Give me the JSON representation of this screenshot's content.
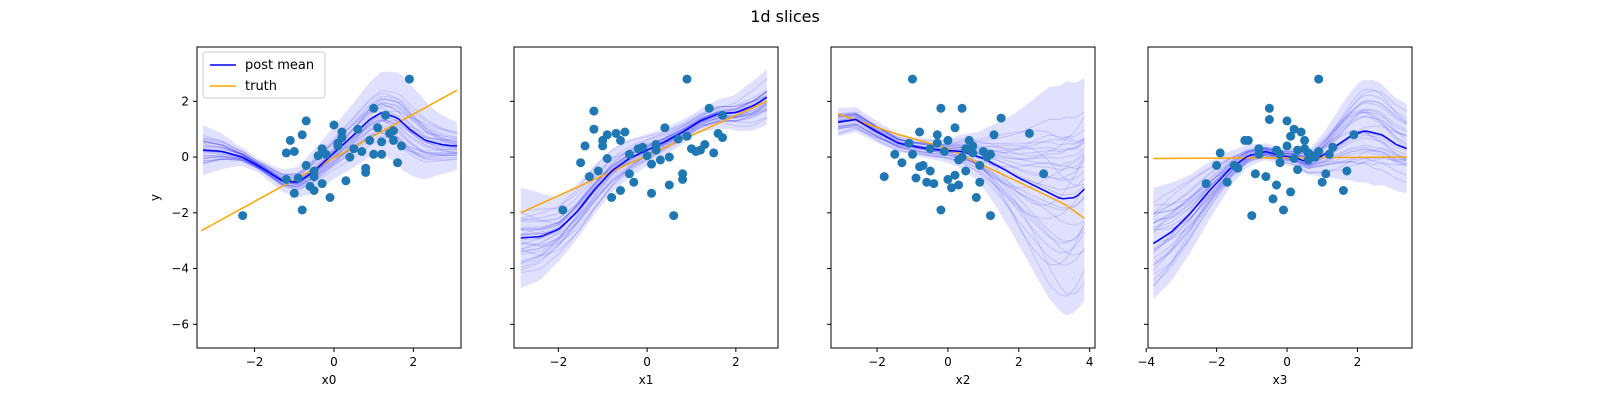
{
  "figure": {
    "title": "1d slices",
    "shared_ylabel": "y"
  },
  "colors": {
    "post_mean": "#0000ff",
    "samples": "#0000ff",
    "truth": "#ffa500",
    "points": "#1f77b4"
  },
  "legend": {
    "placement": "upper-left of first panel",
    "post_mean": "post mean",
    "truth": "truth"
  },
  "chart_data": [
    {
      "type": "line",
      "xlabel": "x0",
      "ylabel": "y",
      "xlim": [
        -3.45,
        3.2
      ],
      "ylim": [
        -6.85,
        3.95
      ],
      "xticks": [
        -2,
        0,
        2
      ],
      "yticks": [
        2,
        0,
        -2,
        -4,
        -6
      ],
      "show_ytick_labels": true,
      "series": [
        {
          "name": "post mean",
          "x": [
            -3.3,
            -2.8,
            -2.3,
            -1.8,
            -1.3,
            -0.9,
            -0.5,
            0,
            0.5,
            0.9,
            1.2,
            1.6,
            1.9,
            2.3,
            2.7,
            3.0,
            3.1
          ],
          "y": [
            0.25,
            0.2,
            0.0,
            -0.4,
            -0.85,
            -0.9,
            -0.5,
            0.15,
            0.8,
            1.35,
            1.6,
            1.4,
            1.0,
            0.6,
            0.45,
            0.4,
            0.4
          ]
        },
        {
          "name": "truth",
          "x": [
            -3.35,
            3.1
          ],
          "y": [
            -2.65,
            2.4
          ]
        }
      ],
      "band_width": [
        0.9,
        0.65,
        0.35,
        0.25,
        0.35,
        0.5,
        0.75,
        0.9,
        1.1,
        1.3,
        1.5,
        1.7,
        1.5,
        1.1,
        0.85
      ],
      "points": {
        "x": [
          -2.3,
          -1.2,
          -1.0,
          -1.2,
          -1.1,
          -0.9,
          -1.0,
          -0.8,
          -0.7,
          -0.6,
          -0.5,
          -0.5,
          -0.4,
          -0.3,
          -0.2,
          -0.1,
          0.0,
          0.1,
          0.2,
          0.3,
          0.4,
          0.5,
          0.6,
          0.7,
          0.8,
          0.9,
          1.0,
          1.1,
          1.2,
          1.3,
          1.4,
          1.5,
          1.6,
          1.7,
          1.9,
          -0.8,
          -0.7,
          -0.5,
          -0.3,
          0.1,
          0.2,
          0.8,
          1.0,
          1.2,
          1.5
        ],
        "y": [
          -2.1,
          -0.8,
          0.2,
          0.15,
          0.6,
          -0.75,
          -1.3,
          -1.9,
          1.3,
          -1.05,
          -1.2,
          -0.7,
          0.05,
          -0.95,
          0.1,
          -1.45,
          1.15,
          0.4,
          0.9,
          -0.85,
          0.0,
          0.3,
          1.0,
          0.2,
          -0.55,
          0.6,
          1.75,
          1.05,
          0.1,
          1.5,
          0.85,
          0.95,
          -0.2,
          0.4,
          2.8,
          0.8,
          -0.3,
          -0.5,
          0.3,
          0.5,
          0.7,
          -0.4,
          0.1,
          0.55,
          0.6
        ]
      }
    },
    {
      "type": "line",
      "xlabel": "x1",
      "ylabel": "",
      "xlim": [
        -3.0,
        2.95
      ],
      "ylim": [
        -6.85,
        3.95
      ],
      "xticks": [
        -2,
        0,
        2
      ],
      "yticks": [
        2,
        0,
        -2,
        -4,
        -6
      ],
      "show_ytick_labels": false,
      "series": [
        {
          "name": "post mean",
          "x": [
            -2.85,
            -2.4,
            -2.0,
            -1.6,
            -1.2,
            -0.8,
            -0.4,
            0,
            0.4,
            0.8,
            1.2,
            1.6,
            2.0,
            2.4,
            2.7
          ],
          "y": [
            -2.9,
            -2.85,
            -2.6,
            -2.0,
            -1.2,
            -0.5,
            -0.05,
            0.25,
            0.55,
            0.9,
            1.3,
            1.55,
            1.6,
            1.85,
            2.15
          ]
        },
        {
          "name": "truth",
          "x": [
            -2.85,
            2.7
          ],
          "y": [
            -2.0,
            2.0
          ]
        }
      ],
      "band_width": [
        1.8,
        1.6,
        1.2,
        1.0,
        0.9,
        0.8,
        0.7,
        0.6,
        0.5,
        0.45,
        0.4,
        0.5,
        0.6,
        0.85,
        1.0
      ],
      "points": {
        "x": [
          -1.9,
          -1.5,
          -1.4,
          -1.3,
          -1.2,
          -1.1,
          -1.0,
          -0.9,
          -0.8,
          -0.7,
          -0.6,
          -0.5,
          -0.4,
          -0.3,
          -0.2,
          -0.1,
          0.0,
          0.1,
          0.2,
          0.3,
          0.4,
          0.5,
          0.6,
          0.7,
          0.8,
          0.9,
          1.0,
          1.1,
          1.2,
          1.3,
          1.4,
          1.6,
          1.7,
          -1.2,
          -0.9,
          -0.6,
          0.2,
          0.5,
          0.8,
          1.5,
          -1.0,
          -0.4,
          0.1,
          0.9,
          1.7
        ],
        "y": [
          -1.9,
          -0.2,
          0.4,
          -0.7,
          1.0,
          -0.5,
          0.6,
          -0.05,
          -1.45,
          0.85,
          -1.2,
          0.9,
          -0.6,
          -0.9,
          0.3,
          0.35,
          0.05,
          -1.3,
          0.45,
          -0.1,
          1.05,
          -1.0,
          -2.1,
          0.65,
          -0.6,
          2.8,
          0.3,
          0.2,
          0.25,
          0.45,
          1.75,
          0.85,
          1.5,
          1.65,
          0.8,
          0.6,
          0.25,
          0.0,
          -0.8,
          0.15,
          0.4,
          0.1,
          -0.25,
          0.75,
          0.7
        ]
      }
    },
    {
      "type": "line",
      "xlabel": "x2",
      "ylabel": "",
      "xlim": [
        -3.3,
        4.15
      ],
      "ylim": [
        -6.85,
        3.95
      ],
      "xticks": [
        -2,
        0,
        2,
        4
      ],
      "yticks": [
        2,
        0,
        -2,
        -4,
        -6
      ],
      "show_ytick_labels": false,
      "series": [
        {
          "name": "post mean",
          "x": [
            -3.1,
            -2.6,
            -2.0,
            -1.4,
            -0.8,
            -0.2,
            0.4,
            1.0,
            1.6,
            2.0,
            2.4,
            2.8,
            3.2,
            3.6,
            3.85
          ],
          "y": [
            1.25,
            1.35,
            0.9,
            0.5,
            0.35,
            0.25,
            0.2,
            -0.05,
            -0.45,
            -0.75,
            -1.0,
            -1.25,
            -1.5,
            -1.45,
            -1.15
          ]
        },
        {
          "name": "truth",
          "x": [
            -3.1,
            -1.5,
            0,
            1.5,
            2.5,
            3.3,
            3.85
          ],
          "y": [
            1.55,
            0.85,
            0.3,
            -0.6,
            -1.2,
            -1.7,
            -2.2
          ]
        }
      ],
      "band_width": [
        0.5,
        0.45,
        0.4,
        0.35,
        0.3,
        0.35,
        0.4,
        0.6,
        0.9,
        1.5,
        2.2,
        3.0,
        3.8,
        4.2,
        4.0
      ],
      "points": {
        "x": [
          -1.8,
          -1.5,
          -1.3,
          -1.1,
          -1.0,
          -0.9,
          -0.8,
          -0.7,
          -0.6,
          -0.5,
          -0.4,
          -0.3,
          -0.2,
          -0.1,
          0.0,
          0.1,
          0.2,
          0.3,
          0.4,
          0.5,
          0.6,
          0.7,
          0.8,
          0.9,
          1.0,
          1.1,
          1.2,
          1.3,
          1.5,
          2.3,
          2.7,
          -0.2,
          0.3,
          -1.0,
          -0.5,
          0.5,
          0.9,
          1.1,
          -0.3,
          0.2,
          0.7,
          1.2,
          -0.8,
          0.0,
          0.4
        ],
        "y": [
          -0.7,
          0.1,
          -0.2,
          0.5,
          2.8,
          -0.75,
          0.9,
          -0.3,
          -0.9,
          0.3,
          -0.95,
          0.8,
          -1.9,
          0.2,
          -0.8,
          -1.1,
          1.05,
          -1.0,
          1.75,
          -0.5,
          0.6,
          0.4,
          -1.45,
          -0.3,
          0.2,
          0.0,
          -2.1,
          0.8,
          1.4,
          0.85,
          -0.6,
          1.75,
          -0.1,
          0.1,
          -0.5,
          0.3,
          -0.9,
          0.05,
          0.5,
          -0.65,
          0.15,
          0.1,
          -0.35,
          0.6,
          0.0
        ]
      }
    },
    {
      "type": "line",
      "xlabel": "x3",
      "ylabel": "",
      "xlim": [
        -3.95,
        3.55
      ],
      "ylim": [
        -6.85,
        3.95
      ],
      "xticks": [
        -4,
        -2,
        0,
        2
      ],
      "yticks": [
        2,
        0,
        -2,
        -4,
        -6
      ],
      "show_ytick_labels": false,
      "series": [
        {
          "name": "post mean",
          "x": [
            -3.8,
            -3.3,
            -2.8,
            -2.2,
            -1.6,
            -1.1,
            -0.6,
            -0.2,
            0.2,
            0.6,
            1.0,
            1.4,
            1.8,
            2.2,
            2.7,
            3.1,
            3.4
          ],
          "y": [
            -3.1,
            -2.7,
            -2.1,
            -1.2,
            -0.4,
            0.05,
            0.2,
            0.05,
            0.0,
            -0.2,
            0.05,
            0.4,
            0.75,
            0.95,
            0.8,
            0.45,
            0.3
          ]
        },
        {
          "name": "truth",
          "x": [
            -3.8,
            3.4
          ],
          "y": [
            -0.05,
            0.0
          ]
        }
      ],
      "band_width": [
        2.0,
        1.8,
        1.5,
        1.2,
        0.9,
        0.6,
        0.4,
        0.3,
        0.3,
        0.35,
        0.5,
        0.9,
        1.4,
        1.8,
        1.9,
        1.7,
        1.6
      ],
      "points": {
        "x": [
          -2.3,
          -2.0,
          -1.9,
          -1.7,
          -1.4,
          -1.2,
          -1.1,
          -1.0,
          -0.9,
          -0.8,
          -0.6,
          -0.5,
          -0.4,
          -0.3,
          -0.2,
          -0.1,
          0.0,
          0.1,
          0.2,
          0.3,
          0.4,
          0.5,
          0.6,
          0.7,
          0.8,
          0.9,
          1.0,
          1.1,
          1.3,
          1.6,
          1.7,
          1.9,
          -0.5,
          0.1,
          -0.2,
          0.3,
          0.6,
          -0.8,
          0.0,
          0.5,
          1.2,
          -1.5,
          -0.3,
          0.2,
          0.9
        ],
        "y": [
          -0.95,
          -0.3,
          0.15,
          -0.9,
          -0.4,
          0.6,
          0.6,
          -2.1,
          -0.6,
          0.3,
          -0.7,
          1.75,
          -1.5,
          -1.0,
          -0.2,
          -1.9,
          1.3,
          -1.25,
          1.0,
          -0.45,
          0.9,
          0.3,
          0.15,
          0.05,
          0.0,
          2.8,
          -0.9,
          -0.6,
          0.35,
          -1.2,
          -0.5,
          0.8,
          1.35,
          0.75,
          0.1,
          0.25,
          -0.1,
          0.1,
          0.4,
          0.6,
          0.1,
          -0.3,
          0.25,
          -0.05,
          0.2
        ]
      }
    }
  ]
}
